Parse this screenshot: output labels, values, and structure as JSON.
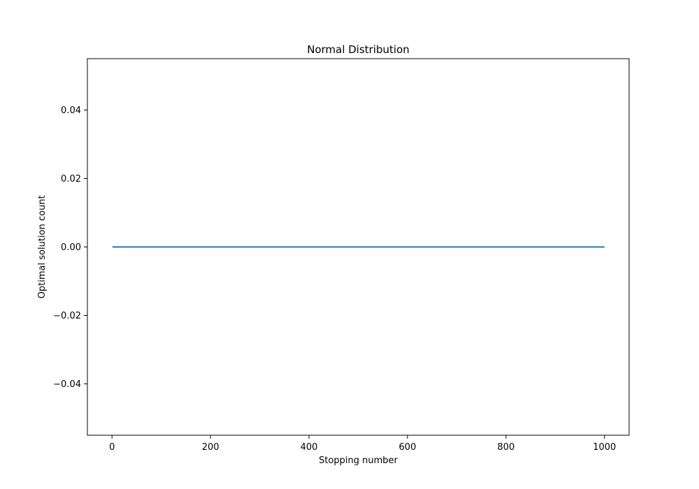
{
  "chart_data": {
    "type": "line",
    "title": "Normal Distribution",
    "xlabel": "Stopping number",
    "ylabel": "Optimal solution count",
    "xlim": [
      -50,
      1050
    ],
    "ylim": [
      -0.055,
      0.055
    ],
    "x_ticks": [
      0,
      200,
      400,
      600,
      800,
      1000
    ],
    "x_tick_labels": [
      "0",
      "200",
      "400",
      "600",
      "800",
      "1000"
    ],
    "y_ticks": [
      -0.04,
      -0.02,
      0.0,
      0.02,
      0.04
    ],
    "y_tick_labels": [
      "−0.04",
      "−0.02",
      "0.00",
      "0.02",
      "0.04"
    ],
    "grid": false,
    "series": [
      {
        "color": "#1f77b4",
        "x": [
          1,
          1000
        ],
        "y": [
          0,
          0
        ]
      }
    ]
  }
}
